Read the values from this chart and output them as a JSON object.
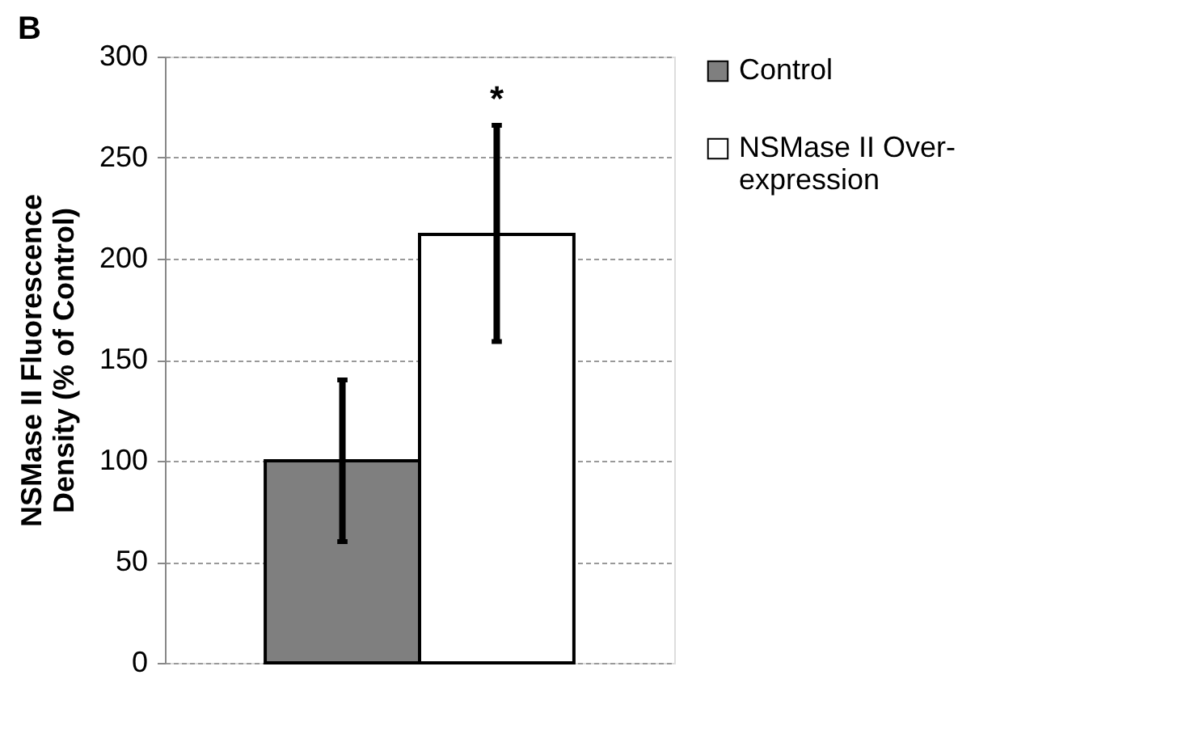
{
  "chart_data": {
    "type": "bar",
    "title": "B",
    "ylabel": "NSMase II Fluorescence Density (% of Control)",
    "categories": [
      null
    ],
    "series": [
      {
        "name": "Control",
        "color": "#7f7f7f",
        "values": [
          100
        ],
        "errors": [
          [
            60,
            140
          ]
        ]
      },
      {
        "name": "NSMase II Over-expression",
        "color": "#ffffff",
        "values": [
          212
        ],
        "errors": [
          [
            159,
            266
          ]
        ]
      }
    ],
    "annotations": [
      "*"
    ],
    "ylim": [
      0,
      300
    ],
    "yticks": [
      0,
      50,
      100,
      150,
      200,
      250,
      300
    ],
    "grid": "y",
    "legend": "right"
  }
}
